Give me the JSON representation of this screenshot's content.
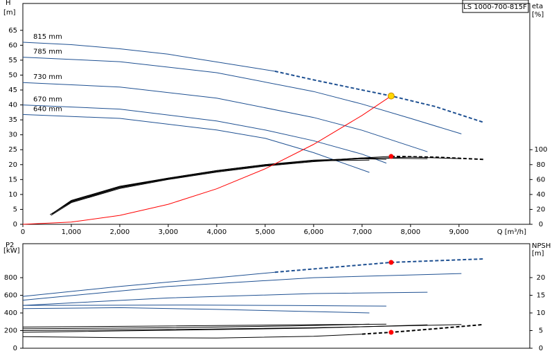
{
  "chart_data": [
    {
      "type": "line",
      "label_box": "LS 1000-700-815F",
      "ylabel": "H",
      "ylabel_unit": "[m]",
      "y2label": "eta",
      "y2label_unit": "[%]",
      "xlabel": "Q [m³/h]",
      "xlim": [
        0,
        10460
      ],
      "ylim": [
        0,
        74
      ],
      "y2lim": [
        0,
        296
      ],
      "xticks": [
        0,
        {
          "value": 1000,
          "label": "1,000"
        },
        {
          "value": 2000,
          "label": "2,000"
        },
        {
          "value": 3000,
          "label": "3,000"
        },
        {
          "value": 4000,
          "label": "4,000"
        },
        {
          "value": 5000,
          "label": "5,000"
        },
        {
          "value": 6000,
          "label": "6,000"
        },
        {
          "value": 7000,
          "label": "7,000"
        },
        {
          "value": 8000,
          "label": "8,000"
        },
        {
          "value": 9000,
          "label": "9,000"
        }
      ],
      "yticks": [
        0,
        5,
        10,
        15,
        20,
        25,
        30,
        35,
        40,
        45,
        50,
        55,
        60,
        65
      ],
      "y2ticks": [
        0,
        20,
        40,
        60,
        80,
        100
      ],
      "series": [
        {
          "name": "815 mm",
          "color": "#1d4f91",
          "x": [
            0,
            1000,
            2000,
            3000,
            4000,
            5200
          ],
          "values": [
            61,
            60.2,
            58.8,
            57,
            54.4,
            51.3
          ]
        },
        {
          "color": "#1d4f91",
          "dashed": true,
          "x": [
            5200,
            6000,
            7000,
            7600,
            8500,
            9500
          ],
          "values": [
            51.3,
            48.4,
            45,
            43,
            39.5,
            34.2
          ]
        },
        {
          "name": "785 mm",
          "color": "#1d4f91",
          "x": [
            0,
            2000,
            4000,
            6000,
            7000,
            8000,
            9050
          ],
          "values": [
            56,
            54.5,
            50.8,
            44.5,
            40.3,
            35.5,
            30.3
          ]
        },
        {
          "name": "730 mm",
          "color": "#1d4f91",
          "x": [
            0,
            2000,
            4000,
            6000,
            7000,
            8350
          ],
          "values": [
            47.5,
            46,
            42.3,
            35.8,
            31.5,
            24.3
          ]
        },
        {
          "name": "670 mm",
          "color": "#1d4f91",
          "x": [
            0,
            2000,
            4000,
            5000,
            6000,
            7000,
            7500
          ],
          "values": [
            40,
            38.6,
            34.6,
            31.6,
            28,
            23.5,
            20.5
          ]
        },
        {
          "name": "640 mm",
          "color": "#1d4f91",
          "x": [
            0,
            2000,
            4000,
            5000,
            6000,
            7150
          ],
          "values": [
            36.8,
            35.5,
            31.6,
            28.8,
            24,
            17.4
          ]
        },
        {
          "color": "#000000",
          "axis": "y2",
          "x": [
            560,
            1000,
            2000,
            3000,
            4000,
            5000,
            6000,
            7000,
            7600
          ],
          "values": [
            13,
            30,
            49,
            61,
            71,
            79,
            85,
            89,
            91
          ]
        },
        {
          "color": "#000000",
          "axis": "y2",
          "dashed": true,
          "x": [
            7600,
            8500,
            9500
          ],
          "values": [
            91,
            90,
            87
          ]
        },
        {
          "color": "#000000",
          "axis": "y2",
          "x": [
            580,
            1000,
            2000,
            3000,
            4000,
            5000,
            6000,
            7000,
            8000,
            9050
          ],
          "values": [
            12,
            29,
            48,
            60,
            70,
            78,
            84,
            88,
            90,
            88
          ]
        },
        {
          "color": "#000000",
          "axis": "y2",
          "x": [
            600,
            1000,
            2000,
            3000,
            4000,
            5000,
            6000,
            7000,
            8350
          ],
          "values": [
            14,
            31,
            50,
            61,
            71,
            79,
            85,
            89,
            88
          ]
        },
        {
          "color": "#000000",
          "axis": "y2",
          "x": [
            620,
            1000,
            2000,
            3000,
            4000,
            5000,
            6000,
            7000,
            7500
          ],
          "values": [
            15,
            31,
            50,
            62,
            72,
            80,
            86,
            88,
            87
          ]
        },
        {
          "color": "#000000",
          "axis": "y2",
          "x": [
            640,
            1000,
            2000,
            3000,
            4000,
            5000,
            6000,
            7150
          ],
          "values": [
            16,
            32,
            51,
            62,
            72,
            80,
            85,
            86
          ]
        },
        {
          "color": "#ff0000",
          "x": [
            0,
            1000,
            2000,
            3000,
            4000,
            5000,
            6000,
            7000,
            7600
          ],
          "values": [
            0,
            0.74,
            3,
            6.7,
            11.9,
            18.6,
            26.8,
            36.5,
            43
          ]
        }
      ],
      "points": [
        {
          "x": 7600,
          "y": 43,
          "color": "#ffd700"
        },
        {
          "x": 7600,
          "y": 91,
          "axis": "y2",
          "color": "#ff0000"
        }
      ]
    },
    {
      "type": "line",
      "ylabel": "P2",
      "ylabel_unit": "[kW]",
      "y2label": "NPSH",
      "y2label_unit": "[m]",
      "xlim": [
        0,
        10460
      ],
      "ylim": [
        0,
        1185
      ],
      "y2lim": [
        0,
        29.6
      ],
      "yticks": [
        0,
        200,
        400,
        600,
        800
      ],
      "y2ticks": [
        0,
        5,
        10,
        15,
        20
      ],
      "series": [
        {
          "color": "#1d4f91",
          "x": [
            0,
            2000,
            4000,
            5200
          ],
          "values": [
            588,
            700,
            800,
            862
          ]
        },
        {
          "color": "#1d4f91",
          "dashed": true,
          "x": [
            5200,
            7600,
            9500
          ],
          "values": [
            862,
            973,
            1012
          ]
        },
        {
          "color": "#1d4f91",
          "x": [
            0,
            3000,
            6000,
            9050
          ],
          "values": [
            545,
            700,
            800,
            847
          ]
        },
        {
          "color": "#1d4f91",
          "x": [
            0,
            3000,
            6000,
            8350
          ],
          "values": [
            486,
            570,
            620,
            635
          ]
        },
        {
          "color": "#1d4f91",
          "x": [
            0,
            2000,
            3500,
            5500,
            7500
          ],
          "values": [
            486,
            487,
            490,
            484,
            478
          ]
        },
        {
          "color": "#1d4f91",
          "x": [
            0,
            2000,
            4000,
            7150
          ],
          "values": [
            450,
            460,
            440,
            400
          ]
        },
        {
          "color": "#000000",
          "axis": "y2",
          "x": [
            0,
            2000,
            4000,
            6000,
            7000
          ],
          "values": [
            3.3,
            3,
            2.9,
            3.4,
            4
          ]
        },
        {
          "color": "#000000",
          "axis": "y2",
          "dashed": true,
          "x": [
            7000,
            7600,
            8500,
            9500
          ],
          "values": [
            4,
            4.5,
            5.5,
            6.7
          ]
        },
        {
          "color": "#000000",
          "axis": "y2",
          "x": [
            0,
            3000,
            6000,
            9050
          ],
          "values": [
            5,
            5.3,
            5.8,
            6.7
          ]
        },
        {
          "color": "#000000",
          "axis": "y2",
          "x": [
            0,
            3000,
            6000,
            8350
          ],
          "values": [
            4.5,
            5.1,
            5.7,
            6.6
          ]
        },
        {
          "color": "#000000",
          "axis": "y2",
          "x": [
            0,
            3000,
            5500,
            7500
          ],
          "values": [
            6,
            6.3,
            6.6,
            6.8
          ]
        },
        {
          "color": "#000000",
          "axis": "y2",
          "x": [
            0,
            3000,
            5500,
            7150
          ],
          "values": [
            5.5,
            5.8,
            6.3,
            6.8
          ]
        }
      ],
      "points": [
        {
          "x": 7600,
          "y": 973,
          "color": "#ff0000"
        },
        {
          "x": 7600,
          "y": 4.5,
          "axis": "y2",
          "color": "#ff0000"
        }
      ]
    }
  ]
}
